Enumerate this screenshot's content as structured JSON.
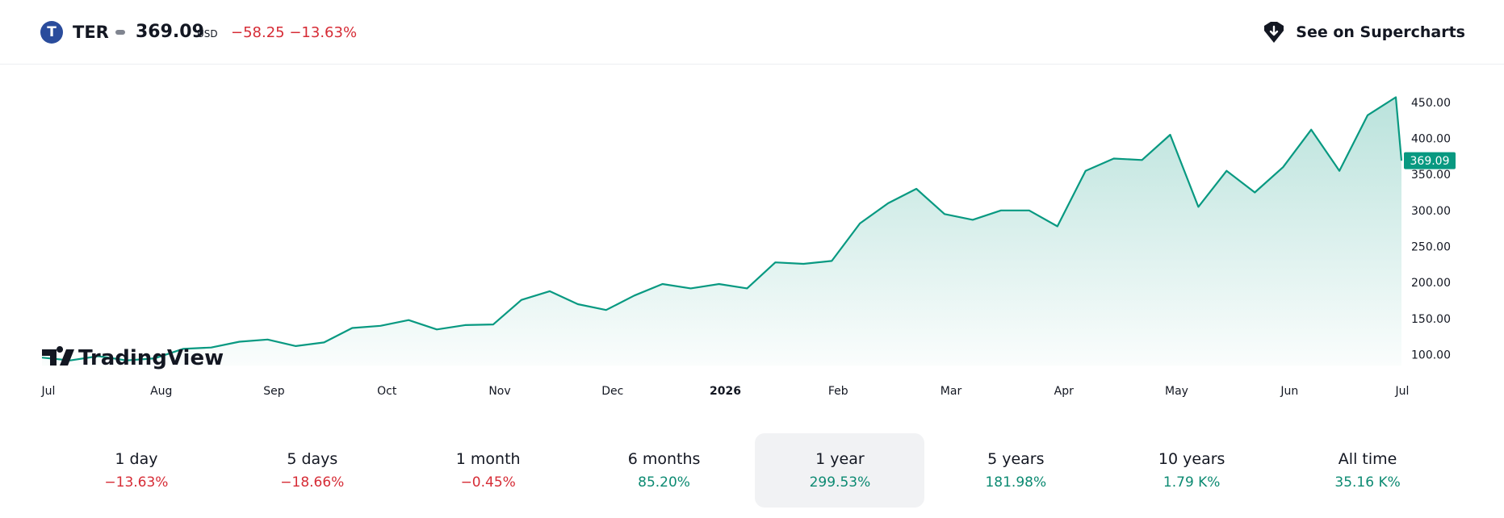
{
  "header": {
    "logo_letter": "T",
    "symbol": "TER",
    "price": "369.09",
    "currency": "USD",
    "change": "−58.25 −13.63%",
    "supercharts_label": "See on Supercharts",
    "supercharts_icon": "shield-icon"
  },
  "colors": {
    "line": "#089981",
    "negative": "#d62c36",
    "positive": "#0c8a72",
    "price_tag": "#089981"
  },
  "watermark": "TradingView",
  "chart_data": {
    "type": "area",
    "ylim": [
      85,
      490
    ],
    "y_ticks": [
      "100.00",
      "150.00",
      "200.00",
      "250.00",
      "300.00",
      "350.00",
      "400.00",
      "450.00"
    ],
    "x_ticks": [
      {
        "label": "Jul",
        "x": 0
      },
      {
        "label": "Aug",
        "x": 1
      },
      {
        "label": "Sep",
        "x": 2
      },
      {
        "label": "Oct",
        "x": 3
      },
      {
        "label": "Nov",
        "x": 4
      },
      {
        "label": "Dec",
        "x": 5
      },
      {
        "label": "2026",
        "x": 6,
        "bold": true
      },
      {
        "label": "Feb",
        "x": 7
      },
      {
        "label": "Mar",
        "x": 8
      },
      {
        "label": "Apr",
        "x": 9
      },
      {
        "label": "May",
        "x": 10
      },
      {
        "label": "Jun",
        "x": 11
      },
      {
        "label": "Jul",
        "x": 12
      }
    ],
    "last_price_label": "369.09",
    "last_price": 369.09,
    "x": [
      0,
      0.25,
      0.5,
      0.75,
      1,
      1.25,
      1.5,
      1.75,
      2,
      2.25,
      2.5,
      2.75,
      3,
      3.25,
      3.5,
      3.75,
      4,
      4.25,
      4.5,
      4.75,
      5,
      5.25,
      5.5,
      5.75,
      6,
      6.25,
      6.5,
      6.75,
      7,
      7.25,
      7.5,
      7.75,
      8,
      8.25,
      8.5,
      8.75,
      9,
      9.25,
      9.5,
      9.75,
      10,
      10.25,
      10.5,
      10.75,
      11,
      11.25,
      11.5,
      11.75,
      12,
      12.05
    ],
    "values": [
      96,
      92,
      98,
      92,
      95,
      108,
      110,
      118,
      121,
      112,
      117,
      137,
      140,
      148,
      135,
      141,
      142,
      176,
      188,
      170,
      162,
      182,
      198,
      192,
      198,
      192,
      228,
      226,
      230,
      282,
      310,
      330,
      295,
      287,
      300,
      300,
      278,
      355,
      372,
      370,
      405,
      305,
      355,
      325,
      360,
      412,
      355,
      432,
      457,
      369.09
    ]
  },
  "periods": [
    {
      "label": "1 day",
      "value": "−13.63%",
      "trend": "neg"
    },
    {
      "label": "5 days",
      "value": "−18.66%",
      "trend": "neg"
    },
    {
      "label": "1 month",
      "value": "−0.45%",
      "trend": "neg"
    },
    {
      "label": "6 months",
      "value": "85.20%",
      "trend": "pos"
    },
    {
      "label": "1 year",
      "value": "299.53%",
      "trend": "pos",
      "active": true
    },
    {
      "label": "5 years",
      "value": "181.98%",
      "trend": "pos"
    },
    {
      "label": "10 years",
      "value": "1.79 K%",
      "trend": "pos"
    },
    {
      "label": "All time",
      "value": "35.16 K%",
      "trend": "pos"
    }
  ]
}
